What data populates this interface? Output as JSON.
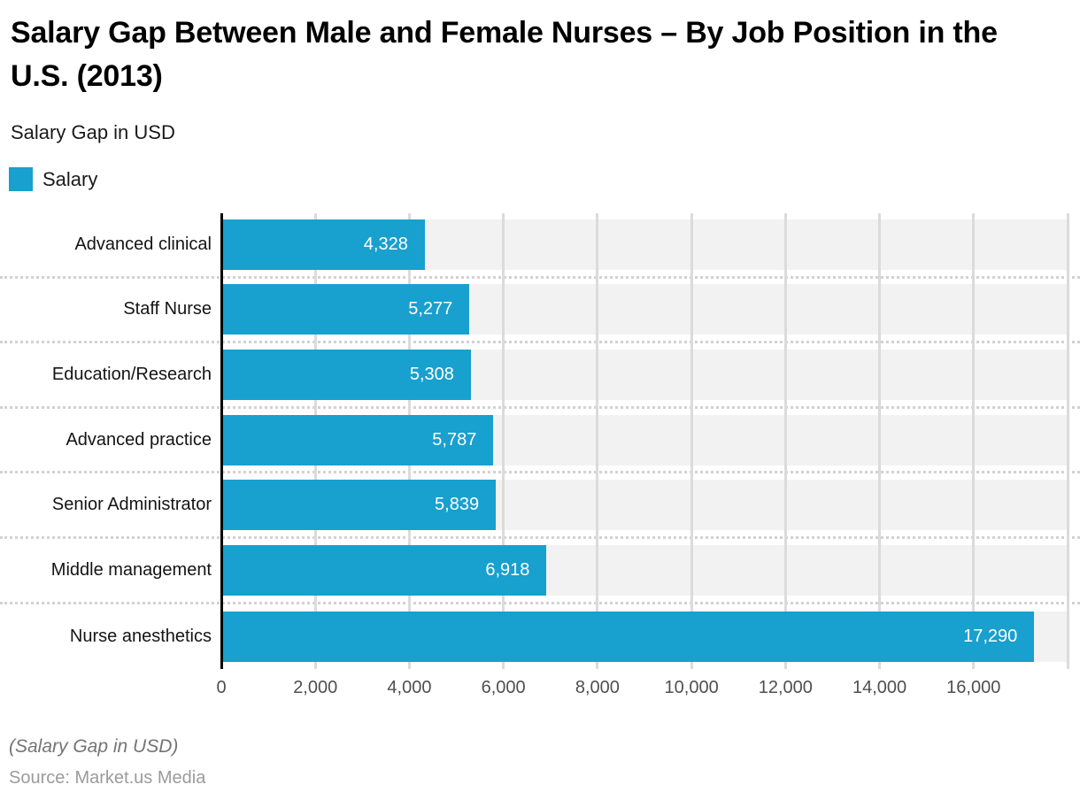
{
  "header": {
    "title": "Salary Gap Between Male and Female Nurses – By Job Position in the U.S. (2013)",
    "subtitle": "Salary Gap in USD"
  },
  "legend": {
    "label": "Salary",
    "swatch_color": "#18a0ce"
  },
  "footer": {
    "footnote": "(Salary Gap in USD)",
    "source": "Source: Market.us Media"
  },
  "colors": {
    "bar": "#18a0ce",
    "row_band": "#f2f2f2",
    "gridline": "#dbdbdb",
    "axis_line": "#000000",
    "value_label": "#ffffff",
    "tick_label": "#4f4f4f"
  },
  "chart_data": {
    "type": "bar",
    "orientation": "horizontal",
    "title": "Salary Gap Between Male and Female Nurses – By Job Position in the U.S. (2013)",
    "xlabel": "Salary Gap in USD",
    "ylabel": "",
    "series_name": "Salary",
    "categories": [
      "Advanced clinical",
      "Staff Nurse",
      "Education/Research",
      "Advanced practice",
      "Senior Administrator",
      "Middle management",
      "Nurse anesthetics"
    ],
    "values": [
      4328,
      5277,
      5308,
      5787,
      5839,
      6918,
      17290
    ],
    "value_labels": [
      "4,328",
      "5,277",
      "5,308",
      "5,787",
      "5,839",
      "6,918",
      "17,290"
    ],
    "xlim": [
      0,
      18000
    ],
    "x_tick_step": 2000,
    "x_ticks": [
      "0",
      "2,000",
      "4,000",
      "6,000",
      "8,000",
      "10,000",
      "12,000",
      "14,000",
      "16,000"
    ],
    "grid": "vertical solid gridlines every 2,000; dotted horizontal separators between category rows",
    "legend_position": "top-left",
    "value_labels_position": "inside-end"
  }
}
